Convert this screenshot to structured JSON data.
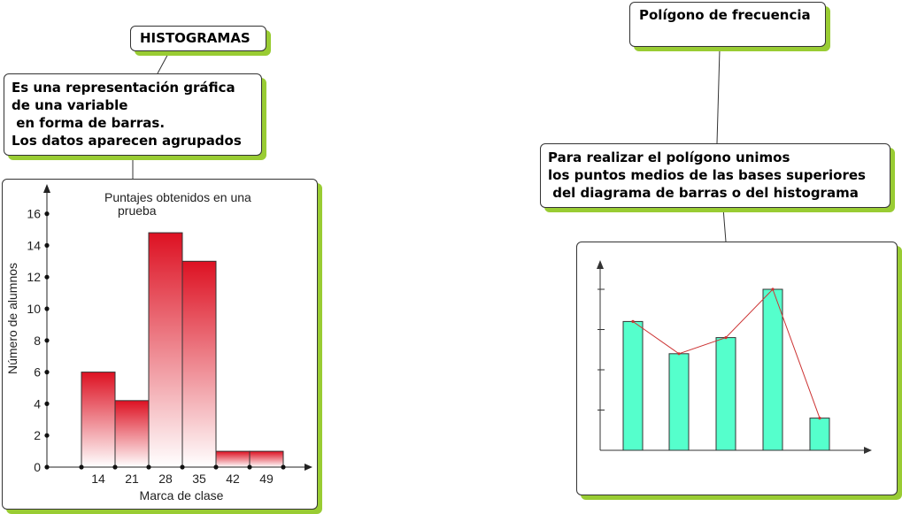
{
  "histogram_node": {
    "title": "HISTOGRAMAS",
    "description_lines": [
      "Es una representación gráfica",
      "de una variable",
      " en forma de barras.",
      "Los datos aparecen agrupados"
    ]
  },
  "polygon_node": {
    "title": "Polígono de frecuencia",
    "description_lines": [
      "Para realizar el polígono unimos",
      "los puntos medios de las bases superiores",
      " del diagrama de barras o del histograma"
    ]
  },
  "colors": {
    "shadow": "#99cc33",
    "histogram_bar": "#dd1122",
    "polygon_bar": "#55ffcc",
    "polygon_line": "#cc3333"
  },
  "chart_data": [
    {
      "type": "bar",
      "title": "Puntajes obtenidos en una prueba",
      "title_lines": [
        "Puntajes obtenidos en una",
        "prueba"
      ],
      "xlabel": "Marca de clase",
      "ylabel": "Número de alumnos",
      "categories": [
        "14",
        "21",
        "28",
        "35",
        "42",
        "49"
      ],
      "values": [
        6,
        4.2,
        14.8,
        13,
        1,
        1
      ],
      "yticks": [
        "0",
        "2",
        "4",
        "6",
        "8",
        "10",
        "12",
        "14",
        "16"
      ],
      "ylim": [
        0,
        17
      ]
    },
    {
      "type": "bar",
      "values": [
        8,
        6,
        7,
        10,
        2
      ],
      "line_values": [
        8,
        6,
        7,
        10,
        2
      ],
      "ylim": [
        0,
        11.5
      ]
    }
  ]
}
